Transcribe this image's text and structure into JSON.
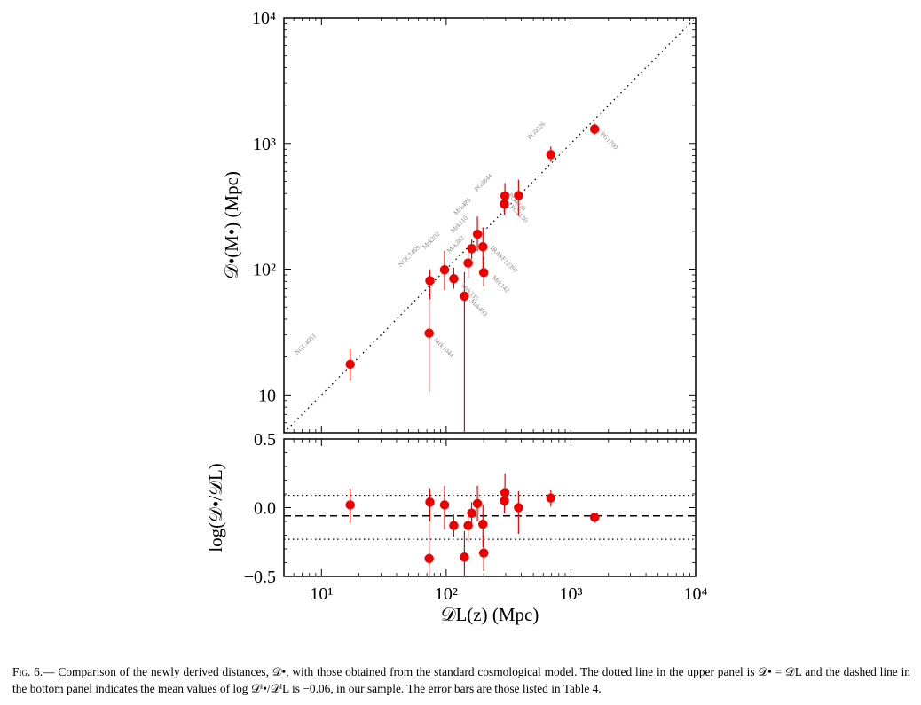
{
  "colors": {
    "marker": "#ee0000",
    "error_bar": "#ee0000",
    "axes": "#000000",
    "point_label": "#8a8a8a"
  },
  "chart_data": [
    {
      "type": "scatter",
      "panel": "upper",
      "xlabel": "𝒟L(z) (Mpc)",
      "ylabel": "𝒟•(M•) (Mpc)",
      "xscale": "log",
      "yscale": "log",
      "xlim": [
        5,
        10000
      ],
      "ylim": [
        5,
        10000
      ],
      "x_ticks": [
        "10¹",
        "10²",
        "10³",
        "10⁴"
      ],
      "y_ticks": [
        "10",
        "10²",
        "10³",
        "10⁴"
      ],
      "reference_line": "y = x (dotted)",
      "grid": false,
      "series": [
        {
          "points": [
            {
              "label": "NGC4051",
              "x": 17,
              "y": 17.5,
              "ylo": 13,
              "yhi": 23.5
            },
            {
              "label": "Mrk1044",
              "x": 73,
              "y": 31,
              "ylo": 10.5,
              "yhi": 64
            },
            {
              "label": "NGC7469",
              "x": 74,
              "y": 81,
              "ylo": 58,
              "yhi": 100
            },
            {
              "label": "Mrk202",
              "x": 97,
              "y": 99,
              "ylo": 68,
              "yhi": 140
            },
            {
              "label": "Mrk335",
              "x": 115,
              "y": 84,
              "ylo": 70,
              "yhi": 103
            },
            {
              "label": "Mrk493",
              "x": 140,
              "y": 61,
              "ylo": 5,
              "yhi": 95
            },
            {
              "label": "Mrk382",
              "x": 150,
              "y": 112,
              "ylo": 85,
              "yhi": 142
            },
            {
              "label": "Mrk110",
              "x": 160,
              "y": 146,
              "ylo": 120,
              "yhi": 173
            },
            {
              "label": "Mrk486",
              "x": 178,
              "y": 190,
              "ylo": 140,
              "yhi": 262
            },
            {
              "label": "IRASF12397",
              "x": 197,
              "y": 151,
              "ylo": 102,
              "yhi": 215
            },
            {
              "label": "Mrk142",
              "x": 200,
              "y": 94,
              "ylo": 73,
              "yhi": 125
            },
            {
              "label": "PG2130",
              "x": 293,
              "y": 330,
              "ylo": 270,
              "yhi": 400
            },
            {
              "label": "PG0844",
              "x": 296,
              "y": 383,
              "ylo": 305,
              "yhi": 485
            },
            {
              "label": "PG0030",
              "x": 380,
              "y": 385,
              "ylo": 265,
              "yhi": 515
            },
            {
              "label": "PG0026",
              "x": 690,
              "y": 815,
              "ylo": 715,
              "yhi": 945
            },
            {
              "label": "PG1700",
              "x": 1550,
              "y": 1300,
              "ylo": 1180,
              "yhi": 1440
            }
          ]
        }
      ]
    },
    {
      "type": "scatter",
      "panel": "lower",
      "xlabel": "𝒟L(z) (Mpc)",
      "ylabel": "log(𝒟•/𝒟L)",
      "xscale": "log",
      "xlim": [
        5,
        10000
      ],
      "ylim": [
        -0.5,
        0.5
      ],
      "x_ticks": [
        "10¹",
        "10²",
        "10³",
        "10⁴"
      ],
      "y_ticks": [
        "−0.5",
        "0.0",
        "0.5"
      ],
      "mean_line": {
        "y": -0.06,
        "style": "dashed"
      },
      "scatter_lines": [
        {
          "y": 0.09,
          "style": "dotted"
        },
        {
          "y": -0.23,
          "style": "dotted"
        }
      ],
      "grid": false,
      "series": [
        {
          "points": [
            {
              "x": 17,
              "y": 0.02,
              "ylo": -0.11,
              "yhi": 0.14
            },
            {
              "x": 73,
              "y": -0.37,
              "ylo": -0.5,
              "yhi": -0.1
            },
            {
              "x": 74,
              "y": 0.04,
              "ylo": -0.1,
              "yhi": 0.14
            },
            {
              "x": 97,
              "y": 0.02,
              "ylo": -0.16,
              "yhi": 0.16
            },
            {
              "x": 115,
              "y": -0.13,
              "ylo": -0.21,
              "yhi": -0.05
            },
            {
              "x": 140,
              "y": -0.36,
              "ylo": -0.5,
              "yhi": -0.17
            },
            {
              "x": 150,
              "y": -0.13,
              "ylo": -0.25,
              "yhi": -0.02
            },
            {
              "x": 160,
              "y": -0.04,
              "ylo": -0.12,
              "yhi": 0.04
            },
            {
              "x": 178,
              "y": 0.03,
              "ylo": -0.1,
              "yhi": 0.16
            },
            {
              "x": 197,
              "y": -0.12,
              "ylo": -0.29,
              "yhi": 0.02
            },
            {
              "x": 200,
              "y": -0.33,
              "ylo": -0.46,
              "yhi": -0.2
            },
            {
              "x": 293,
              "y": 0.05,
              "ylo": -0.04,
              "yhi": 0.13
            },
            {
              "x": 296,
              "y": 0.11,
              "ylo": 0.01,
              "yhi": 0.25
            },
            {
              "x": 380,
              "y": 0.0,
              "ylo": -0.19,
              "yhi": 0.12
            },
            {
              "x": 690,
              "y": 0.07,
              "ylo": 0.01,
              "yhi": 0.13
            },
            {
              "x": 1550,
              "y": -0.07,
              "ylo": -0.11,
              "yhi": -0.04
            }
          ]
        }
      ]
    }
  ],
  "caption": {
    "label": "Fig. 6.—",
    "text": " Comparison of the newly derived distances, 𝒟•, with those obtained from the standard cosmological model. The dotted line in the upper panel is 𝒟• = 𝒟L and the dashed line in the bottom panel indicates the mean values of log 𝒟ⁱ•/𝒟ⁱL is −0.06, in our sample. The error bars are those listed in Table 4."
  }
}
